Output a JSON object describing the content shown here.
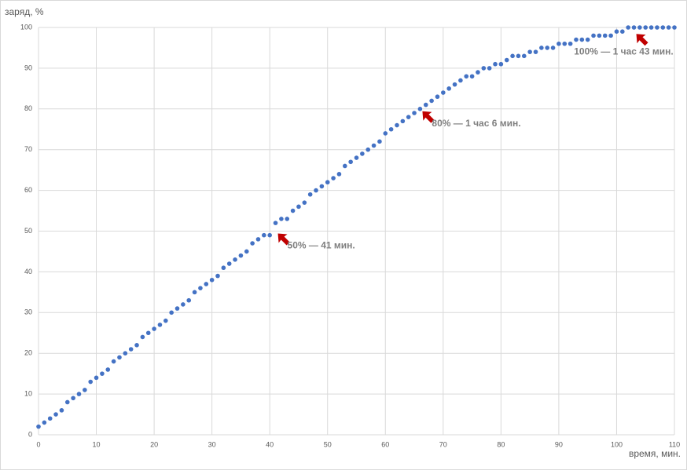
{
  "chart_data": {
    "type": "scatter",
    "y_label": "заряд, %",
    "x_label": "время, мин.",
    "x": [
      0,
      1,
      2,
      3,
      4,
      5,
      6,
      7,
      8,
      9,
      10,
      11,
      12,
      13,
      14,
      15,
      16,
      17,
      18,
      19,
      20,
      21,
      22,
      23,
      24,
      25,
      26,
      27,
      28,
      29,
      30,
      31,
      32,
      33,
      34,
      35,
      36,
      37,
      38,
      39,
      40,
      41,
      42,
      43,
      44,
      45,
      46,
      47,
      48,
      49,
      50,
      51,
      52,
      53,
      54,
      55,
      56,
      57,
      58,
      59,
      60,
      61,
      62,
      63,
      64,
      65,
      66,
      67,
      68,
      69,
      70,
      71,
      72,
      73,
      74,
      75,
      76,
      77,
      78,
      79,
      80,
      81,
      82,
      83,
      84,
      85,
      86,
      87,
      88,
      89,
      90,
      91,
      92,
      93,
      94,
      95,
      96,
      97,
      98,
      99,
      100,
      101,
      102,
      103,
      104,
      105,
      106,
      107,
      108,
      109,
      110
    ],
    "series": [
      {
        "color": "#4472c4",
        "values": [
          2,
          3,
          4,
          5,
          6,
          8,
          9,
          10,
          11,
          13,
          14,
          15,
          16,
          18,
          19,
          20,
          21,
          22,
          24,
          25,
          26,
          27,
          28,
          30,
          31,
          32,
          33,
          35,
          36,
          37,
          38,
          39,
          41,
          42,
          43,
          44,
          45,
          47,
          48,
          49,
          49,
          52,
          53,
          53,
          55,
          56,
          57,
          59,
          60,
          61,
          62,
          63,
          64,
          66,
          67,
          68,
          69,
          70,
          71,
          72,
          74,
          75,
          76,
          77,
          78,
          79,
          80,
          81,
          82,
          83,
          84,
          85,
          86,
          87,
          88,
          88,
          89,
          90,
          90,
          91,
          91,
          92,
          93,
          93,
          93,
          94,
          94,
          95,
          95,
          95,
          96,
          96,
          96,
          97,
          97,
          97,
          98,
          98,
          98,
          98,
          99,
          99,
          100,
          100,
          100,
          100,
          100,
          100,
          100,
          100,
          100
        ]
      }
    ],
    "xlim": [
      0,
      110
    ],
    "xticks": [
      0,
      10,
      20,
      30,
      40,
      50,
      60,
      70,
      80,
      90,
      100,
      110
    ],
    "ylim": [
      0,
      100
    ],
    "yticks": [
      0,
      10,
      20,
      30,
      40,
      50,
      60,
      70,
      80,
      90,
      100
    ],
    "grid": true,
    "annotations": [
      {
        "text": "50% — 41 мин.",
        "x": 41,
        "y": 50,
        "color": "#c00000"
      },
      {
        "text": "80% — 1 час 6 мин.",
        "x": 66,
        "y": 80,
        "color": "#c00000"
      },
      {
        "text": "100% — 1 час 43 мин.",
        "x": 103,
        "y": 99,
        "color": "#c00000"
      }
    ]
  }
}
